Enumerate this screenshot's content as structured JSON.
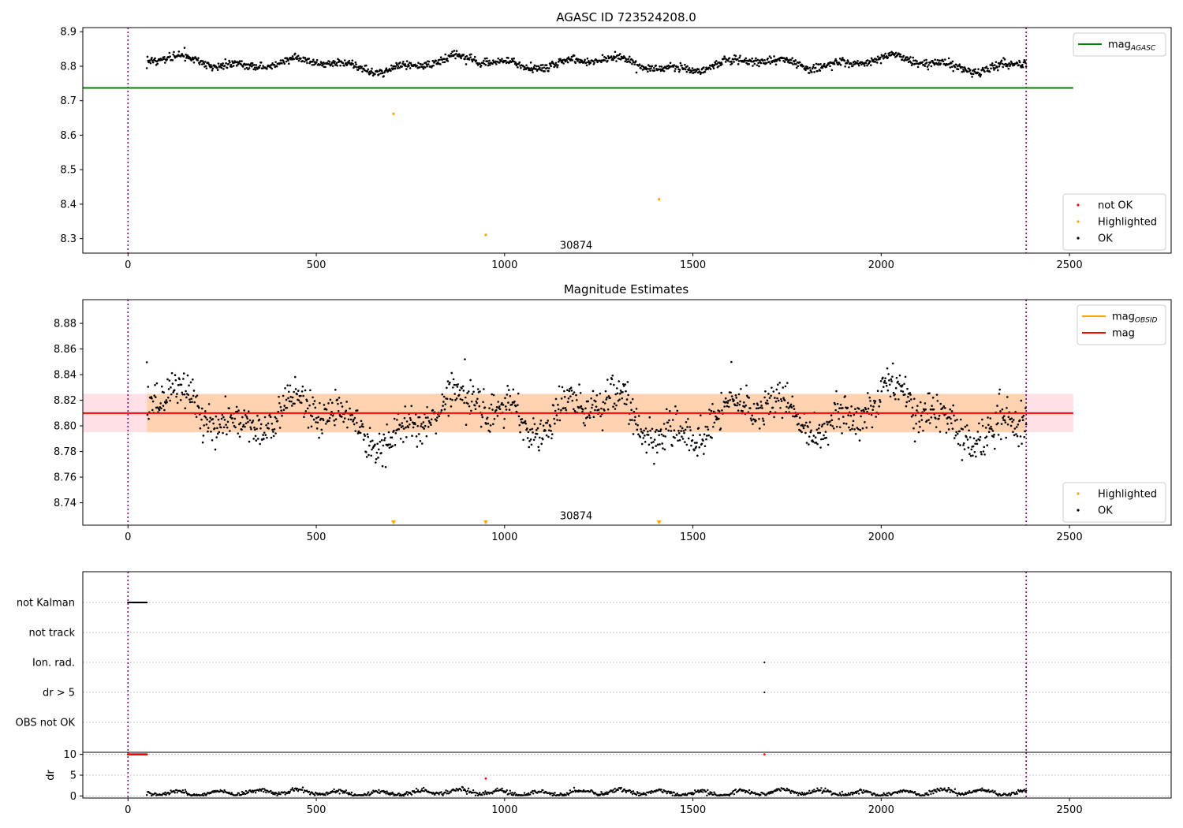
{
  "chart_data": [
    {
      "type": "scatter",
      "title": "AGASC ID 723524208.0",
      "xlabel": "",
      "ylabel": "",
      "xlim": [
        -120,
        2770
      ],
      "ylim": [
        8.258,
        8.912
      ],
      "x_ticks": [
        0,
        500,
        1000,
        1500,
        2000,
        2500
      ],
      "y_ticks": [
        8.3,
        8.4,
        8.5,
        8.6,
        8.7,
        8.8,
        8.9
      ],
      "annotation": "30874",
      "annotation_x": 1190,
      "annotation_y": 8.28,
      "vertical_lines": [
        0,
        2385
      ],
      "reference_line": {
        "label": "mag_{AGASC}",
        "value": 8.737,
        "x_range": [
          -120,
          2510
        ],
        "color": "#008000"
      },
      "ok_series": {
        "x_range": [
          50,
          2385
        ],
        "count": 1400,
        "level": 8.808,
        "seed": 11
      },
      "highlighted_points": [
        {
          "x": 705,
          "y": 8.662
        },
        {
          "x": 950,
          "y": 8.311
        },
        {
          "x": 1410,
          "y": 8.414
        }
      ],
      "legend_upper": [
        {
          "label": "mag",
          "sub": "AGASC",
          "color": "#008000",
          "kind": "line"
        }
      ],
      "legend_lower": [
        {
          "label": "not OK",
          "color": "#ff0000",
          "kind": "dot"
        },
        {
          "label": "Highlighted",
          "color": "#ffa500",
          "kind": "dot"
        },
        {
          "label": "OK",
          "color": "#000000",
          "kind": "dot"
        }
      ]
    },
    {
      "type": "scatter",
      "title": "Magnitude Estimates",
      "xlabel": "",
      "ylabel": "",
      "xlim": [
        -120,
        2770
      ],
      "ylim": [
        8.7225,
        8.8985
      ],
      "x_ticks": [
        0,
        500,
        1000,
        1500,
        2000,
        2500
      ],
      "y_ticks": [
        8.74,
        8.76,
        8.78,
        8.8,
        8.82,
        8.84,
        8.86,
        8.88
      ],
      "annotation": "30874",
      "annotation_x": 1190,
      "annotation_y": 8.7295,
      "vertical_lines": [
        0,
        2385
      ],
      "mag_line": {
        "label": "mag",
        "value": 8.81,
        "x_range": [
          -120,
          2510
        ],
        "color": "#ff0000"
      },
      "band_obsid": {
        "low": 8.795,
        "high": 8.825,
        "x_range": [
          50,
          2385
        ],
        "color": "#ffa500"
      },
      "band_agasc": {
        "low": 8.795,
        "high": 8.825,
        "x_range": [
          -120,
          2510
        ],
        "color": "#ffb6c1"
      },
      "ok_series": {
        "x_range": [
          50,
          2385
        ],
        "count": 1400,
        "level": 8.808,
        "seed": 23
      },
      "highlighted_markers_x": [
        705,
        950,
        1410
      ],
      "legend_upper": [
        {
          "label": "mag",
          "sub": "OBSID",
          "color": "#ffa500",
          "kind": "line"
        },
        {
          "label": "mag",
          "sub": "",
          "color": "#ff0000",
          "kind": "line"
        }
      ],
      "legend_lower": [
        {
          "label": "Highlighted",
          "color": "#ffa500",
          "kind": "dot"
        },
        {
          "label": "OK",
          "color": "#000000",
          "kind": "dot"
        }
      ]
    },
    {
      "type": "scatter",
      "title": "",
      "xlim": [
        -120,
        2770
      ],
      "flag_rows": [
        "not Kalman",
        "not track",
        "Ion. rad.",
        "dr > 5",
        "OBS not OK"
      ],
      "flag_points": [
        {
          "row": "not Kalman",
          "x_range": [
            0,
            50
          ]
        },
        {
          "row": "Ion. rad.",
          "x": 1690
        },
        {
          "row": "dr > 5",
          "x": 1690
        }
      ],
      "vertical_lines": [
        0,
        2385
      ]
    },
    {
      "type": "scatter",
      "title": "",
      "xlabel": "",
      "ylabel": "dr",
      "xlim": [
        -120,
        2770
      ],
      "ylim": [
        -0.5,
        10.5
      ],
      "x_ticks": [
        0,
        500,
        1000,
        1500,
        2000,
        2500
      ],
      "y_ticks": [
        0,
        5,
        10
      ],
      "vertical_lines": [
        0,
        2385
      ],
      "red_points": [
        {
          "x_range": [
            0,
            50
          ],
          "y": 10
        },
        {
          "x": 950,
          "y": 4.2
        },
        {
          "x": 1690,
          "y": 10
        }
      ],
      "ok_series": {
        "x_range": [
          50,
          2385
        ],
        "count": 1100,
        "level": 0.8,
        "seed": 41
      }
    }
  ]
}
